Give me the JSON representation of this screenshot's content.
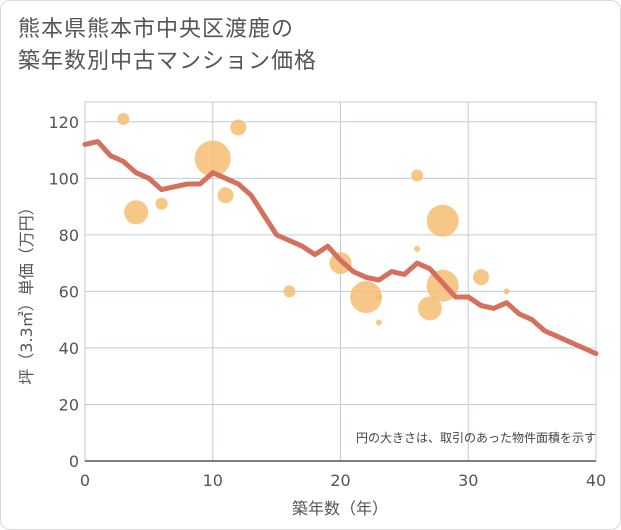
{
  "title_line1": "熊本県熊本市中央区渡鹿の",
  "title_line2": "築年数別中古マンション価格",
  "chart_data": {
    "type": "scatter",
    "xlabel": "築年数（年）",
    "ylabel": "坪（3.3㎡）単価（万円）",
    "note": "円の大きさは、取引のあった物件面積を示す",
    "xlim": [
      0,
      40
    ],
    "ylim": [
      0,
      127
    ],
    "xticks": [
      "0",
      "10",
      "20",
      "30",
      "40"
    ],
    "yticks": [
      "0",
      "20",
      "40",
      "60",
      "80",
      "100",
      "120"
    ],
    "xtick_values": [
      0,
      10,
      20,
      30,
      40
    ],
    "ytick_values": [
      0,
      20,
      40,
      60,
      80,
      100,
      120
    ],
    "bubbles": [
      {
        "x": 3,
        "y": 121,
        "size": 6
      },
      {
        "x": 4,
        "y": 88,
        "size": 12
      },
      {
        "x": 6,
        "y": 91,
        "size": 6
      },
      {
        "x": 10,
        "y": 107,
        "size": 18
      },
      {
        "x": 11,
        "y": 94,
        "size": 8
      },
      {
        "x": 12,
        "y": 118,
        "size": 8
      },
      {
        "x": 16,
        "y": 60,
        "size": 6
      },
      {
        "x": 20,
        "y": 70,
        "size": 11
      },
      {
        "x": 22,
        "y": 58,
        "size": 16
      },
      {
        "x": 23,
        "y": 58,
        "size": 3
      },
      {
        "x": 23,
        "y": 49,
        "size": 3
      },
      {
        "x": 26,
        "y": 101,
        "size": 6
      },
      {
        "x": 26,
        "y": 75,
        "size": 3
      },
      {
        "x": 27,
        "y": 54,
        "size": 12
      },
      {
        "x": 28,
        "y": 85,
        "size": 16
      },
      {
        "x": 28,
        "y": 62,
        "size": 16
      },
      {
        "x": 31,
        "y": 65,
        "size": 8
      },
      {
        "x": 33,
        "y": 60,
        "size": 3
      }
    ],
    "trend": {
      "x": [
        0,
        1,
        2,
        3,
        4,
        5,
        6,
        7,
        8,
        9,
        10,
        11,
        12,
        13,
        14,
        15,
        16,
        17,
        18,
        19,
        20,
        21,
        22,
        23,
        24,
        25,
        26,
        27,
        28,
        29,
        30,
        31,
        32,
        33,
        34,
        35,
        36,
        37,
        38,
        39,
        40
      ],
      "y": [
        112,
        113,
        108,
        106,
        102,
        100,
        96,
        97,
        98,
        98,
        102,
        100,
        98,
        94,
        87,
        80,
        78,
        76,
        73,
        76,
        71,
        67,
        65,
        64,
        67,
        66,
        70,
        68,
        63,
        58,
        58,
        55,
        54,
        56,
        52,
        50,
        46,
        44,
        42,
        40,
        38
      ]
    },
    "colors": {
      "bubble": "#f5bb6e",
      "trend": "#d4705b",
      "grid": "#bccdd9",
      "plot_border": "#bccdd9",
      "axis": "#555555"
    }
  }
}
